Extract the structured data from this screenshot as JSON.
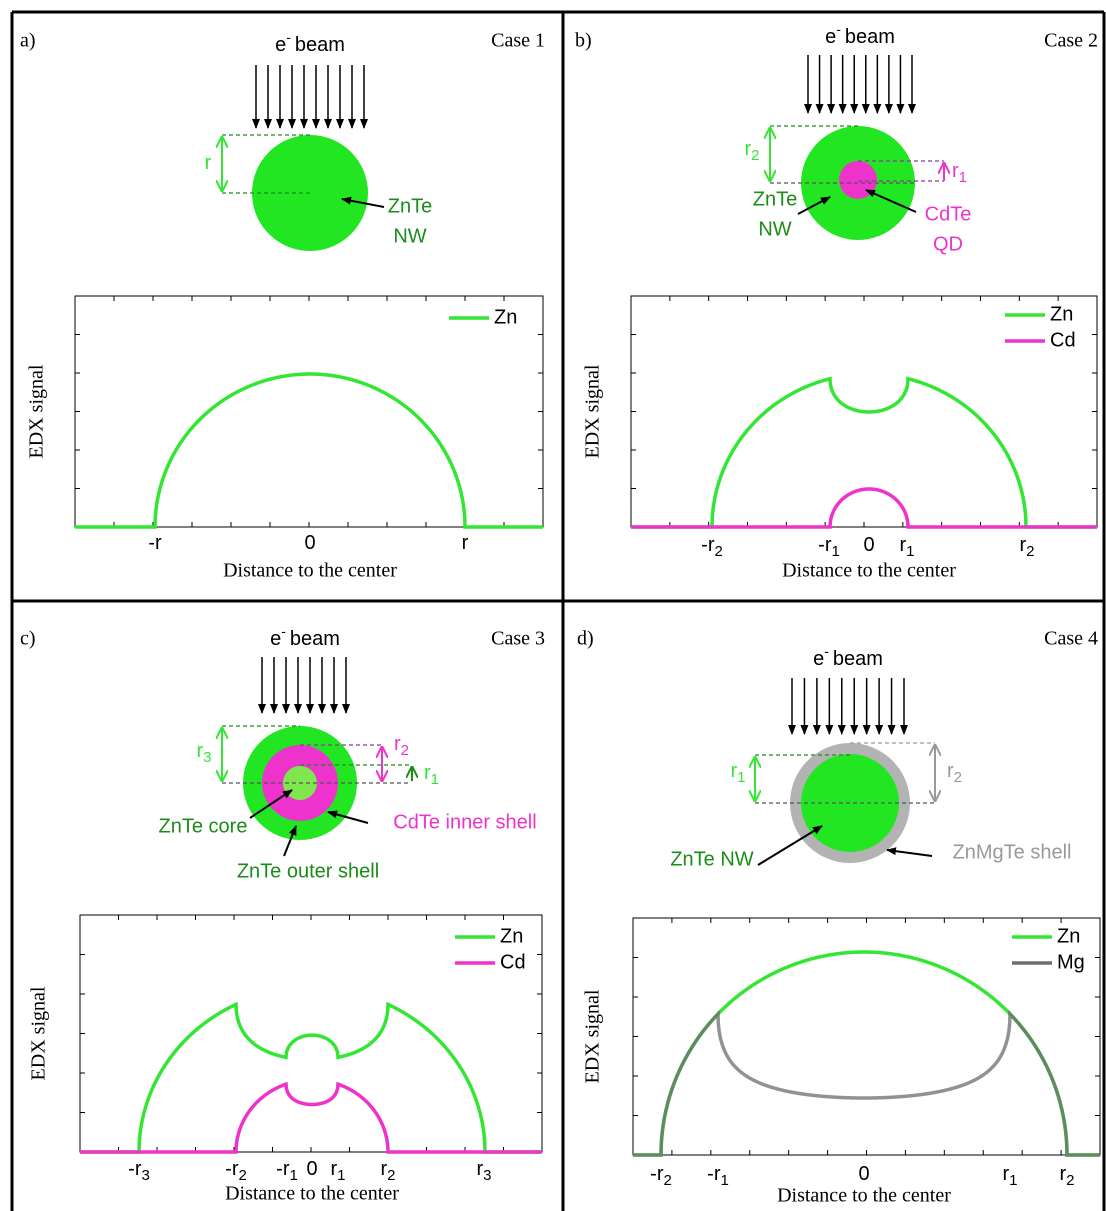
{
  "panels": [
    {
      "label": "a)",
      "case": "Case 1",
      "beam": {
        "e": "e",
        "sup": "-",
        "text": "beam"
      },
      "radii": [
        {
          "base": "r"
        }
      ],
      "materials": [
        "ZnTe",
        "NW"
      ],
      "legend": [
        "Zn"
      ],
      "y_label": "EDX signal",
      "x_label": "Distance to the center",
      "x_ticks": [
        {
          "base": "-r"
        },
        {
          "base": "0"
        },
        {
          "base": "r"
        }
      ]
    },
    {
      "label": "b)",
      "case": "Case 2",
      "beam": {
        "e": "e",
        "sup": "-",
        "text": "beam"
      },
      "radii": [
        {
          "base": "r",
          "sub": "2"
        },
        {
          "base": "r",
          "sub": "1"
        }
      ],
      "materials": [
        "ZnTe",
        "NW",
        "CdTe",
        "QD"
      ],
      "legend": [
        "Zn",
        "Cd"
      ],
      "y_label": "EDX signal",
      "x_label": "Distance to the center",
      "x_ticks": [
        {
          "base": "-r",
          "sub": "2"
        },
        {
          "base": "-r",
          "sub": "1"
        },
        {
          "base": "0"
        },
        {
          "base": "r",
          "sub": "1"
        },
        {
          "base": "r",
          "sub": "2"
        }
      ]
    },
    {
      "label": "c)",
      "case": "Case 3",
      "beam": {
        "e": "e",
        "sup": "-",
        "text": "beam"
      },
      "radii": [
        {
          "base": "r",
          "sub": "3"
        },
        {
          "base": "r",
          "sub": "2"
        },
        {
          "base": "r",
          "sub": "1"
        }
      ],
      "materials": [
        "ZnTe core",
        "CdTe inner shell",
        "ZnTe outer shell"
      ],
      "legend": [
        "Zn",
        "Cd"
      ],
      "y_label": "EDX signal",
      "x_label": "Distance to the center",
      "x_ticks": [
        {
          "base": "-r",
          "sub": "3"
        },
        {
          "base": "-r",
          "sub": "2"
        },
        {
          "base": "-r",
          "sub": "1"
        },
        {
          "base": "0"
        },
        {
          "base": "r",
          "sub": "1"
        },
        {
          "base": "r",
          "sub": "2"
        },
        {
          "base": "r",
          "sub": "3"
        }
      ]
    },
    {
      "label": "d)",
      "case": "Case 4",
      "beam": {
        "e": "e",
        "sup": "-",
        "text": "beam"
      },
      "radii": [
        {
          "base": "r",
          "sub": "1"
        },
        {
          "base": "r",
          "sub": "2"
        }
      ],
      "materials": [
        "ZnTe NW",
        "ZnMgTe shell"
      ],
      "legend": [
        "Zn",
        "Mg"
      ],
      "y_label": "EDX signal",
      "x_label": "Distance to the center",
      "x_ticks": [
        {
          "base": "-r",
          "sub": "2"
        },
        {
          "base": "-r",
          "sub": "1"
        },
        {
          "base": "0"
        },
        {
          "base": "r",
          "sub": "1"
        },
        {
          "base": "r",
          "sub": "2"
        }
      ]
    }
  ]
}
